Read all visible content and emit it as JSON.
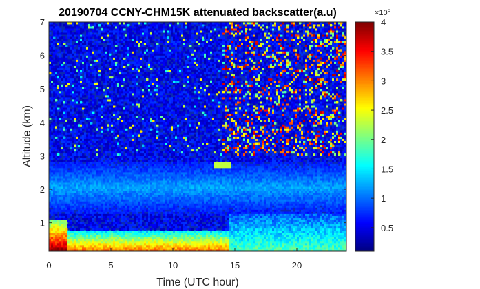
{
  "chart_data": {
    "type": "heatmap",
    "title": "20190704 CCNY-CHM15K attenuated backscatter(a.u)",
    "xlabel": "Time (UTC hour)",
    "ylabel": "Altitude (km)",
    "xlim": [
      0,
      24
    ],
    "ylim": [
      0.15,
      7
    ],
    "x_ticks": [
      0,
      5,
      10,
      15,
      20
    ],
    "y_ticks": [
      1,
      2,
      3,
      4,
      5,
      6,
      7
    ],
    "colorbar": {
      "clim": [
        0.1,
        4
      ],
      "ticks": [
        0.5,
        1,
        1.5,
        2,
        2.5,
        3,
        3.5,
        4
      ],
      "tick_labels": [
        "0.5",
        "1",
        "1.5",
        "2",
        "2.5",
        "3",
        "3.5",
        "4"
      ],
      "exponent_label": "×10",
      "exponent_power": "5",
      "colormap": "jet"
    },
    "features": {
      "noise_background_mean": 0.55,
      "boundary_layer_bands": [
        {
          "x_start": 0,
          "x_end": 1.5,
          "y_bottom": 0.15,
          "y_top": 1.1,
          "value": 3.8
        },
        {
          "x_start": 1.5,
          "x_end": 14.5,
          "y_bottom": 0.15,
          "y_top": 0.75,
          "value": 3.0
        },
        {
          "x_start": 14.5,
          "x_end": 24,
          "y_bottom": 0.15,
          "y_top": 1.3,
          "value": 1.8
        }
      ],
      "aerosol_layer": {
        "y_bottom": 1.3,
        "y_top": 2.8,
        "value": 1.1
      },
      "cloud_spot": {
        "x": 14.0,
        "y": 2.75,
        "value": 2.3
      },
      "high_noise_region": {
        "x_start": 14,
        "x_end": 24,
        "y_bottom": 3,
        "y_top": 7,
        "value": 3.5
      }
    },
    "grid": false
  }
}
